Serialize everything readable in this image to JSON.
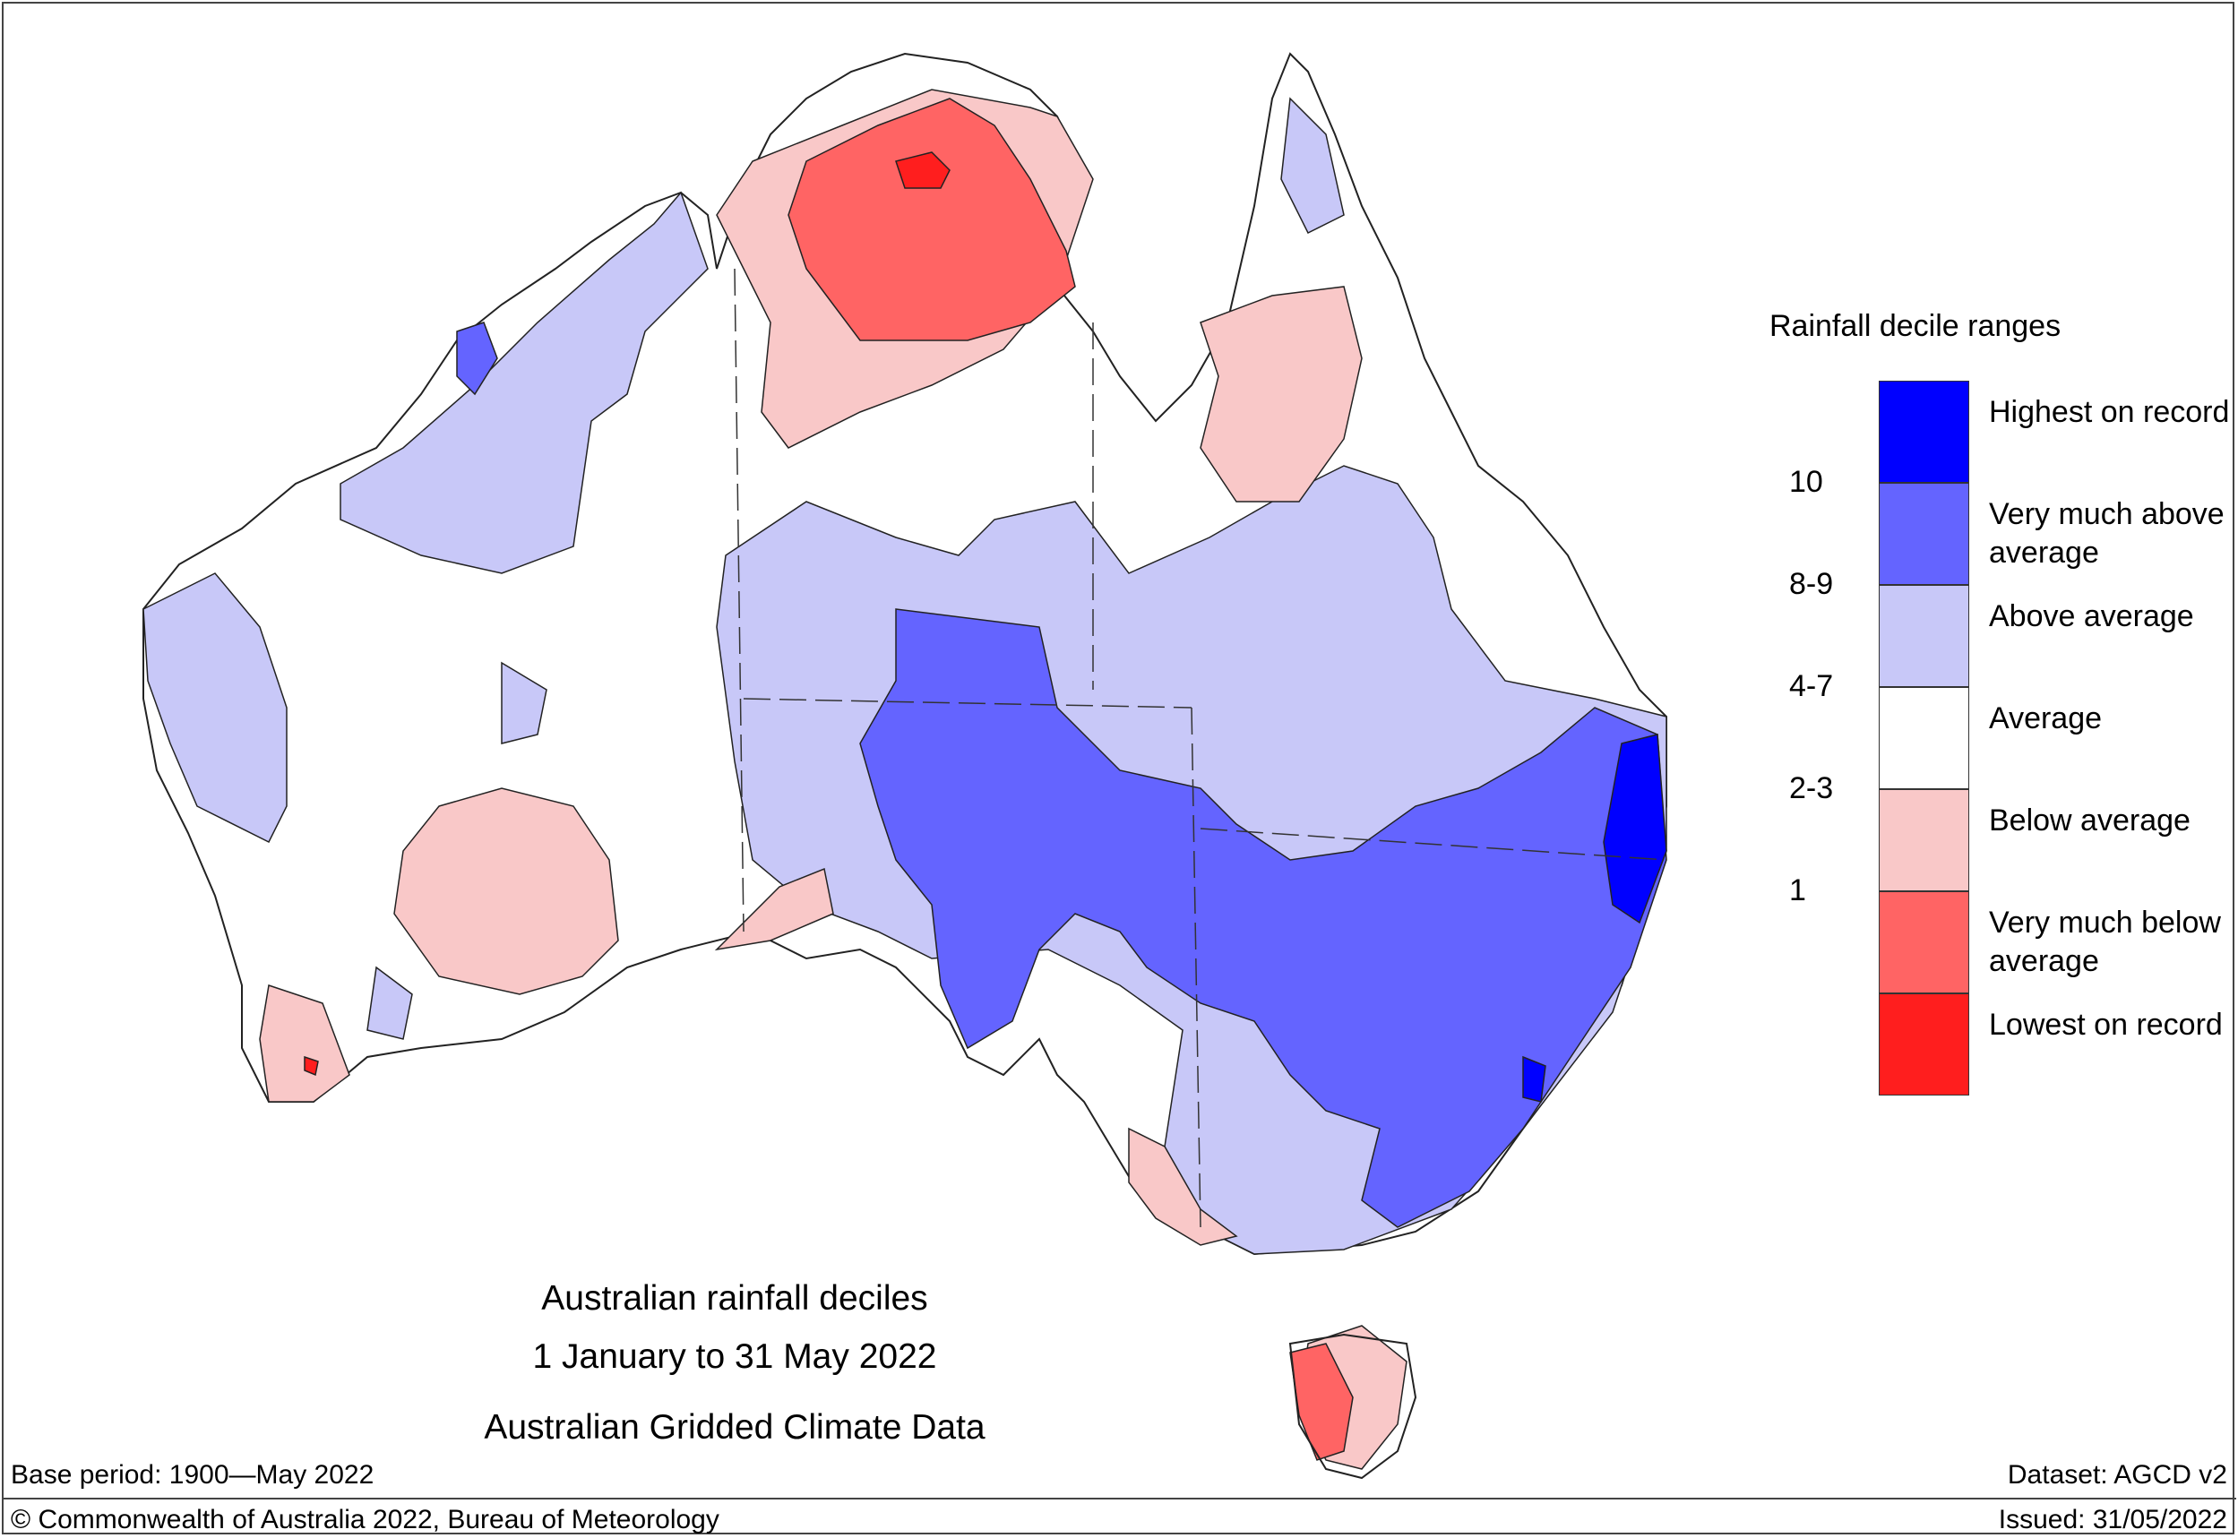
{
  "map": {
    "title_lines": [
      "Australian rainfall deciles",
      "1 January to 31 May 2022",
      "Australian Gridded Climate Data"
    ],
    "base_period": "Base period: 1900—May 2022",
    "dataset": "Dataset: AGCD v2",
    "copyright": "© Commonwealth of Australia 2022, Bureau of Meteorology",
    "issued": "Issued: 31/05/2022"
  },
  "legend": {
    "title": "Rainfall decile ranges",
    "items": [
      {
        "label": "Highest on record",
        "color": "#0000ff"
      },
      {
        "label": "Very much above average",
        "color": "#6464ff"
      },
      {
        "label": "Above average",
        "color": "#c8c8f8"
      },
      {
        "label": "Average",
        "color": "#ffffff"
      },
      {
        "label": "Below average",
        "color": "#f9c8c8"
      },
      {
        "label": "Very much below average",
        "color": "#ff6464"
      },
      {
        "label": "Lowest on record",
        "color": "#ff1e1e"
      }
    ],
    "ranges": [
      "10",
      "8-9",
      "4-7",
      "2-3",
      "1"
    ]
  }
}
